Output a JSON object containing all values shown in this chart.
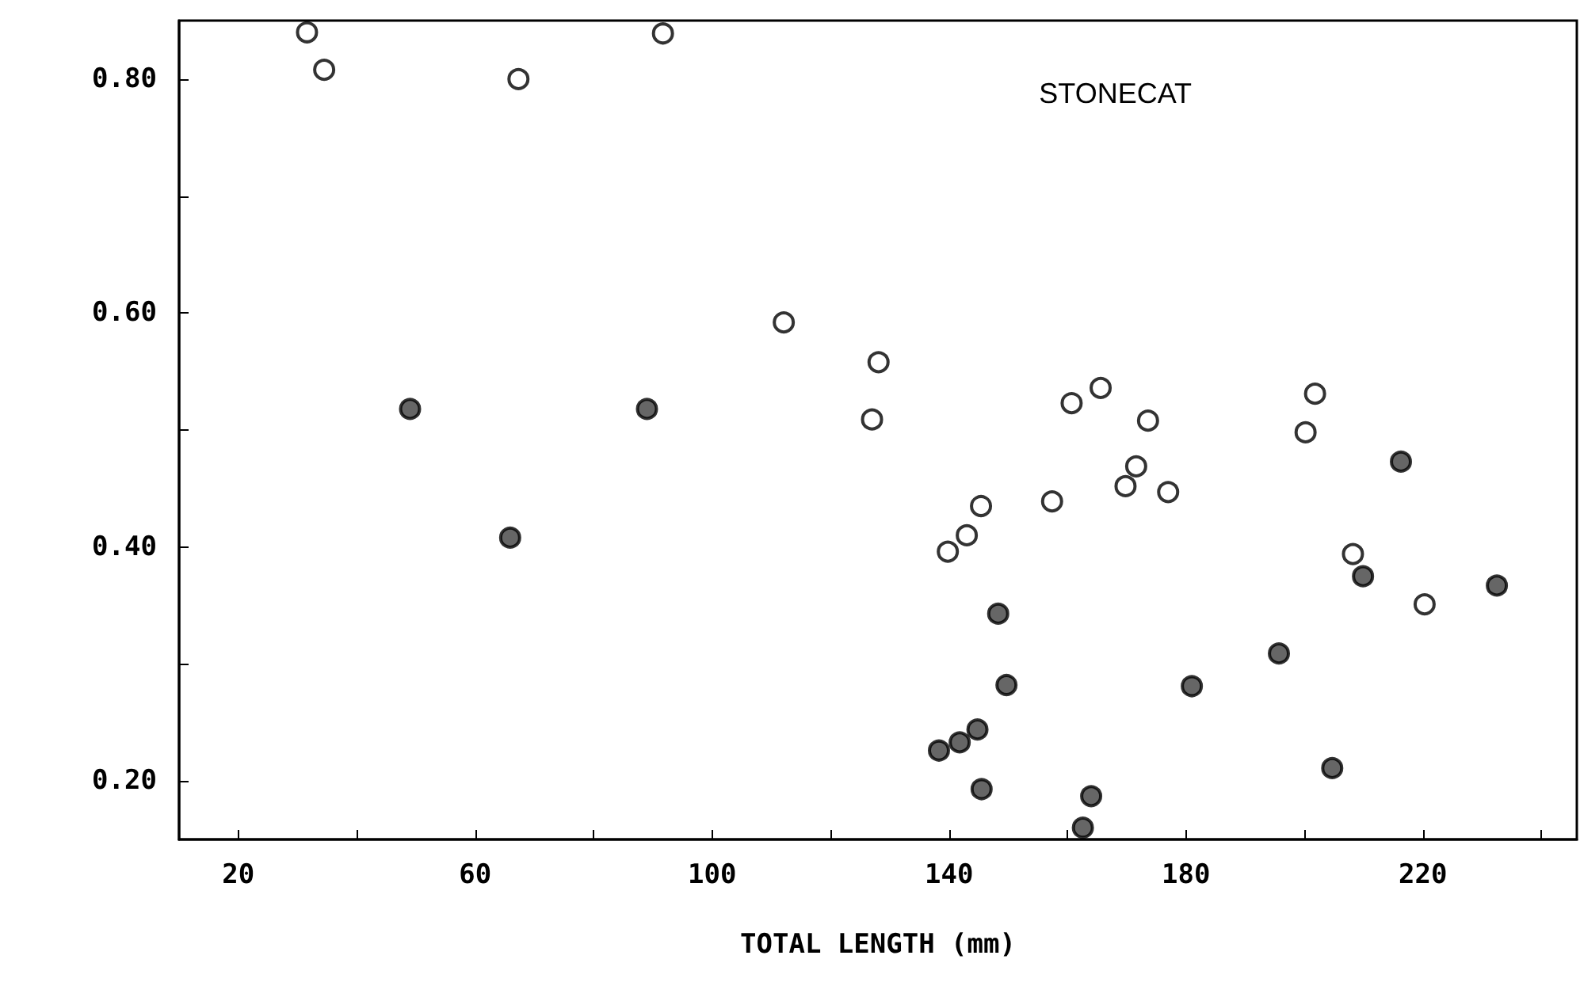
{
  "chart_data": {
    "type": "scatter",
    "xlabel": "TOTAL LENGTH (mm)",
    "annotations": [
      "STONECAT"
    ],
    "xlim": [
      10,
      246
    ],
    "ylim": [
      0.15,
      0.85
    ],
    "xticks": [
      20,
      {
        "value": 40,
        "label": null
      },
      60,
      {
        "value": 80,
        "label": null
      },
      100,
      {
        "value": 120,
        "label": null
      },
      140,
      {
        "value": 160,
        "label": null
      },
      180,
      {
        "value": 200,
        "label": null
      },
      220,
      {
        "value": 240,
        "label": null
      }
    ],
    "yticks": [
      {
        "value": 0.2,
        "label": "0.20"
      },
      {
        "value": 0.3,
        "label": null
      },
      {
        "value": 0.4,
        "label": "0.40"
      },
      {
        "value": 0.5,
        "label": null
      },
      {
        "value": 0.6,
        "label": "0.60"
      },
      {
        "value": 0.7,
        "label": null
      },
      {
        "value": 0.8,
        "label": "0.80"
      }
    ],
    "marker": "circle",
    "series": [
      {
        "color": "#ffffff",
        "x": [
          31.6,
          34.5,
          67.3,
          91.7,
          112.1,
          128.1,
          127.0,
          160.7,
          165.6,
          173.6,
          200.2,
          201.8,
          171.6,
          169.8,
          177.0,
          157.4,
          145.4,
          143.0,
          139.8,
          208.2,
          220.3
        ],
        "values": [
          0.84,
          0.808,
          0.8,
          0.839,
          0.592,
          0.558,
          0.509,
          0.523,
          0.536,
          0.508,
          0.498,
          0.531,
          0.469,
          0.452,
          0.447,
          0.439,
          0.435,
          0.41,
          0.396,
          0.394,
          0.351
        ]
      },
      {
        "color": "#404040",
        "x": [
          49.0,
          89.0,
          65.9,
          216.3,
          209.9,
          232.5,
          148.3,
          195.7,
          149.7,
          181.0,
          144.8,
          141.8,
          138.3,
          204.7,
          145.5,
          164.0,
          162.6
        ],
        "values": [
          0.518,
          0.518,
          0.408,
          0.473,
          0.375,
          0.367,
          0.343,
          0.309,
          0.282,
          0.281,
          0.244,
          0.233,
          0.226,
          0.211,
          0.193,
          0.187,
          0.16
        ]
      }
    ]
  }
}
